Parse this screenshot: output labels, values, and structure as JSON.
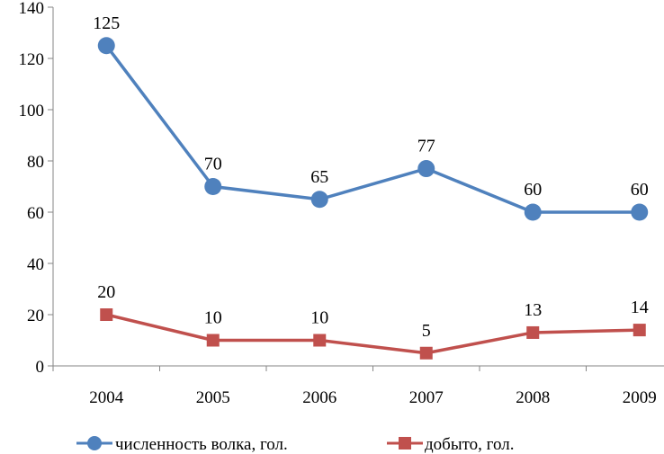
{
  "chart_data": {
    "type": "line",
    "categories": [
      "2004",
      "2005",
      "2006",
      "2007",
      "2008",
      "2009"
    ],
    "series": [
      {
        "name": "численность волка, гол.",
        "values": [
          125,
          70,
          65,
          77,
          60,
          60
        ],
        "color": "#4F81BD",
        "marker": "circle"
      },
      {
        "name": "добыто, гол.",
        "values": [
          20,
          10,
          10,
          5,
          13,
          14
        ],
        "color": "#C0504D",
        "marker": "square"
      }
    ],
    "ylim": [
      0,
      140
    ],
    "yticks": [
      0,
      20,
      40,
      60,
      80,
      100,
      120,
      140
    ],
    "grid": false,
    "legend": "bottom",
    "data_labels": true,
    "axis_color": "#868686"
  }
}
